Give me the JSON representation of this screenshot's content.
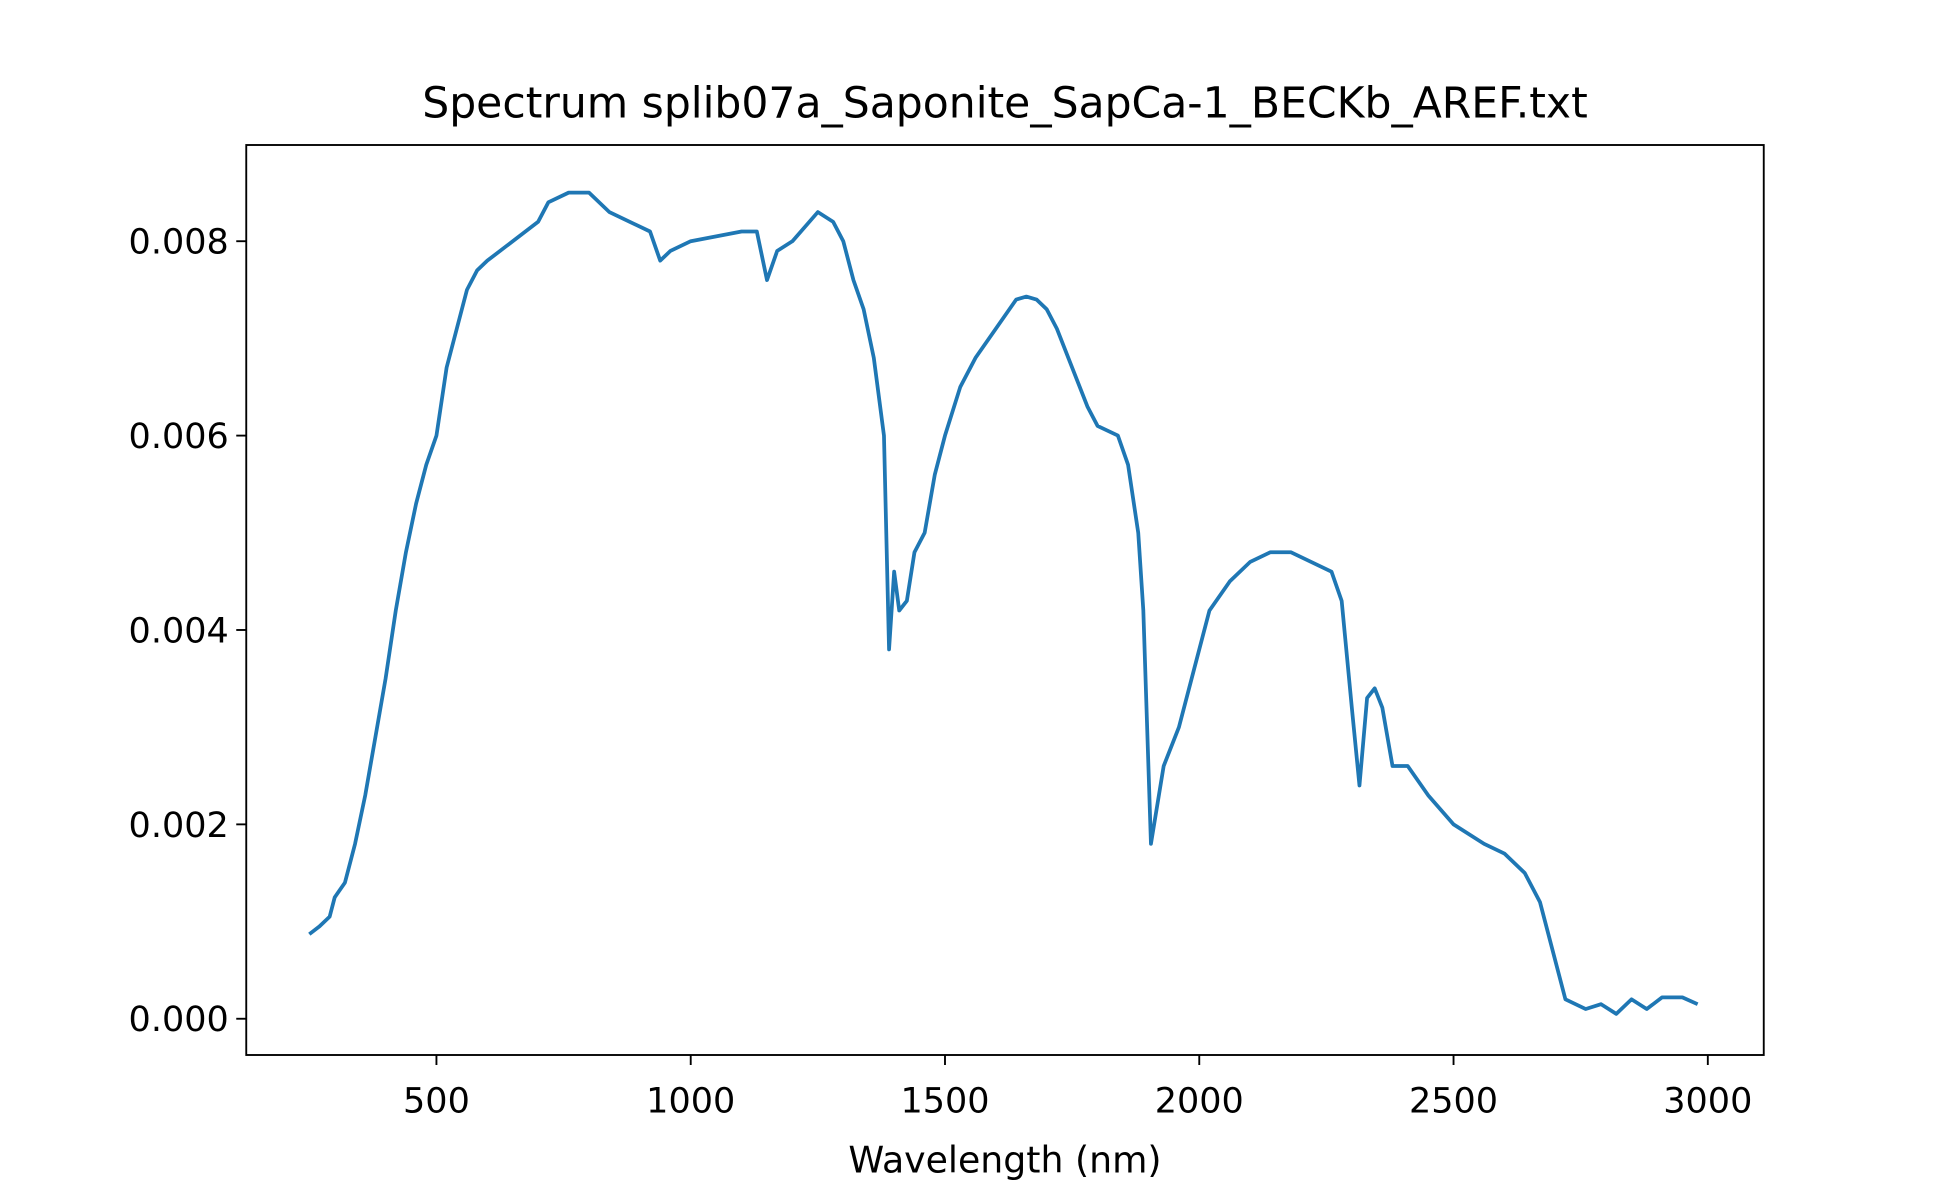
{
  "chart_data": {
    "type": "line",
    "title": "Spectrum splib07a_Saponite_SapCa-1_BECKb_AREF.txt",
    "x_label": "Wavelength (nm)",
    "xlim": [
      126,
      3110
    ],
    "ylim": [
      -0.000373,
      0.00899
    ],
    "xticks": [
      500,
      1000,
      1500,
      2000,
      2500,
      3000
    ],
    "yticks": [
      {
        "value": 0,
        "label": "0.000"
      },
      0.002,
      0.004,
      0.006,
      0.008
    ],
    "series": [
      {
        "color": "#1f77b4",
        "x": [
          250,
          270,
          290,
          300,
          320,
          340,
          360,
          380,
          400,
          420,
          440,
          460,
          480,
          500,
          520,
          540,
          560,
          580,
          600,
          650,
          700,
          720,
          760,
          800,
          840,
          880,
          920,
          940,
          960,
          1000,
          1050,
          1100,
          1130,
          1150,
          1170,
          1200,
          1250,
          1280,
          1300,
          1320,
          1340,
          1360,
          1380,
          1390,
          1400,
          1410,
          1425,
          1440,
          1460,
          1480,
          1500,
          1530,
          1560,
          1600,
          1640,
          1660,
          1680,
          1700,
          1720,
          1750,
          1780,
          1800,
          1840,
          1860,
          1880,
          1890,
          1905,
          1930,
          1960,
          1990,
          2020,
          2060,
          2100,
          2140,
          2180,
          2220,
          2260,
          2280,
          2300,
          2315,
          2330,
          2345,
          2360,
          2380,
          2410,
          2450,
          2500,
          2560,
          2600,
          2640,
          2670,
          2720,
          2760,
          2790,
          2820,
          2850,
          2880,
          2910,
          2950,
          2980
        ],
        "values": [
          0.00087,
          0.00095,
          0.00105,
          0.00125,
          0.0014,
          0.0018,
          0.0023,
          0.0029,
          0.0035,
          0.0042,
          0.0048,
          0.0053,
          0.0057,
          0.006,
          0.0067,
          0.0071,
          0.0075,
          0.0077,
          0.0078,
          0.008,
          0.0082,
          0.0084,
          0.0085,
          0.0085,
          0.0083,
          0.0082,
          0.0081,
          0.0078,
          0.0079,
          0.008,
          0.00805,
          0.0081,
          0.0081,
          0.0076,
          0.0079,
          0.008,
          0.0083,
          0.0082,
          0.008,
          0.0076,
          0.0073,
          0.0068,
          0.006,
          0.0038,
          0.0046,
          0.0042,
          0.0043,
          0.0048,
          0.005,
          0.0056,
          0.006,
          0.0065,
          0.0068,
          0.0071,
          0.0074,
          0.00743,
          0.0074,
          0.0073,
          0.0071,
          0.0067,
          0.0063,
          0.0061,
          0.006,
          0.0057,
          0.005,
          0.0042,
          0.0018,
          0.0026,
          0.003,
          0.0036,
          0.0042,
          0.0045,
          0.0047,
          0.0048,
          0.0048,
          0.0047,
          0.0046,
          0.0043,
          0.0032,
          0.0024,
          0.0033,
          0.0034,
          0.0032,
          0.0026,
          0.0026,
          0.0023,
          0.002,
          0.0018,
          0.0017,
          0.0015,
          0.0012,
          0.0002,
          0.0001,
          0.00015,
          5e-05,
          0.0002,
          0.0001,
          0.00022,
          0.00022,
          0.00015
        ]
      }
    ]
  }
}
